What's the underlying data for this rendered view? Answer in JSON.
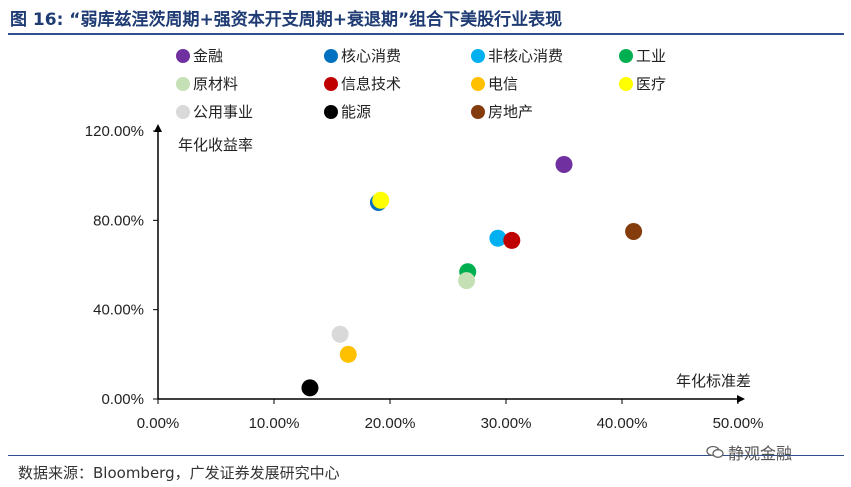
{
  "title": "图 16: “弱库兹涅茨周期+强资本开支周期+衰退期”组合下美股行业表现",
  "source": "数据来源：Bloomberg，广发证券发展研究中心",
  "watermark": "静观金融",
  "chart_data": {
    "type": "scatter",
    "xlabel": "年化标准差",
    "ylabel": "年化收益率",
    "xlim": [
      0,
      0.5
    ],
    "ylim": [
      0,
      1.2
    ],
    "x_ticks": [
      "0.00%",
      "10.00%",
      "20.00%",
      "30.00%",
      "40.00%",
      "50.00%"
    ],
    "y_ticks": [
      "0.00%",
      "40.00%",
      "80.00%",
      "120.00%"
    ],
    "legend_placement": "top",
    "series": [
      {
        "name": "金融",
        "color": "#7030a0",
        "x": 0.35,
        "y": 1.05
      },
      {
        "name": "核心消费",
        "color": "#0070c0",
        "x": 0.19,
        "y": 0.88
      },
      {
        "name": "非核心消费",
        "color": "#00b0f0",
        "x": 0.293,
        "y": 0.72
      },
      {
        "name": "工业",
        "color": "#00b050",
        "x": 0.267,
        "y": 0.57
      },
      {
        "name": "原材料",
        "color": "#c5e0b4",
        "x": 0.266,
        "y": 0.53
      },
      {
        "name": "信息技术",
        "color": "#c00000",
        "x": 0.305,
        "y": 0.71
      },
      {
        "name": "电信",
        "color": "#ffc000",
        "x": 0.164,
        "y": 0.2
      },
      {
        "name": "医疗",
        "color": "#ffff00",
        "x": 0.192,
        "y": 0.89
      },
      {
        "name": "公用事业",
        "color": "#d9d9d9",
        "x": 0.157,
        "y": 0.29
      },
      {
        "name": "能源",
        "color": "#000000",
        "x": 0.131,
        "y": 0.05
      },
      {
        "name": "房地产",
        "color": "#843c0c",
        "x": 0.41,
        "y": 0.75
      }
    ]
  }
}
